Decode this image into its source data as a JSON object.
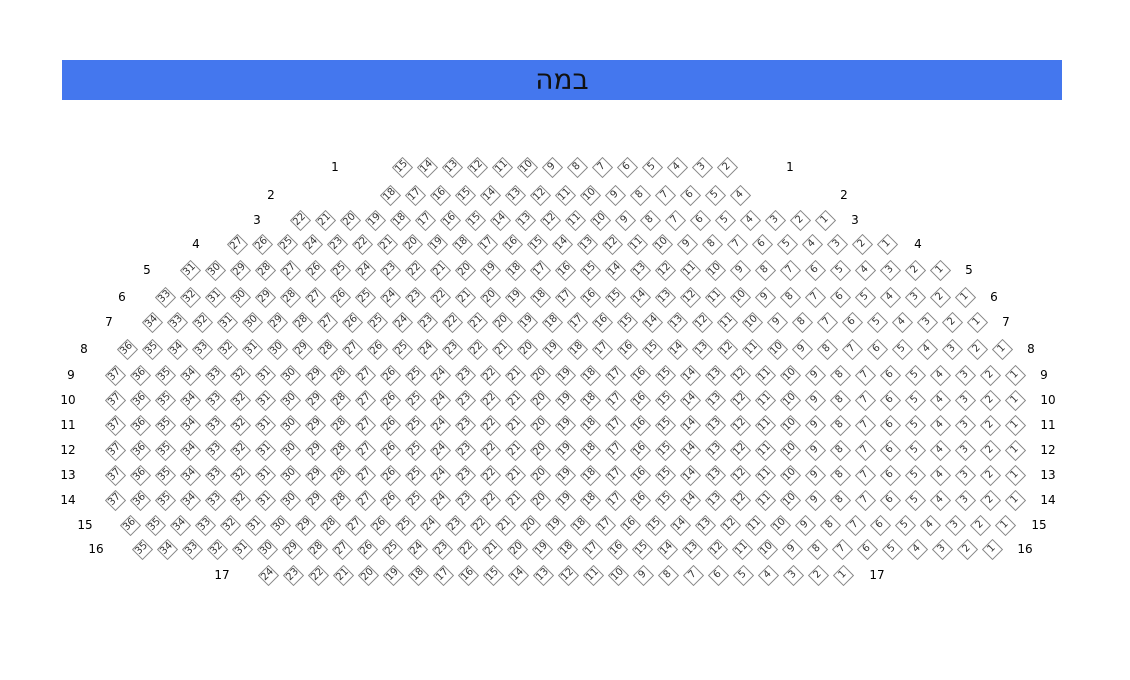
{
  "stage": {
    "label": "במה",
    "color": "#4477ee"
  },
  "rows": [
    {
      "label": "1",
      "seat_from": 15,
      "seat_to": 2
    },
    {
      "label": "2",
      "seat_from": 18,
      "seat_to": 4
    },
    {
      "label": "3",
      "seat_from": 22,
      "seat_to": 1
    },
    {
      "label": "4",
      "seat_from": 27,
      "seat_to": 1
    },
    {
      "label": "5",
      "seat_from": 31,
      "seat_to": 1
    },
    {
      "label": "6",
      "seat_from": 33,
      "seat_to": 1
    },
    {
      "label": "7",
      "seat_from": 34,
      "seat_to": 1
    },
    {
      "label": "8",
      "seat_from": 36,
      "seat_to": 1
    },
    {
      "label": "9",
      "seat_from": 37,
      "seat_to": 1
    },
    {
      "label": "10",
      "seat_from": 37,
      "seat_to": 1
    },
    {
      "label": "11",
      "seat_from": 37,
      "seat_to": 1
    },
    {
      "label": "12",
      "seat_from": 37,
      "seat_to": 1
    },
    {
      "label": "13",
      "seat_from": 37,
      "seat_to": 1
    },
    {
      "label": "14",
      "seat_from": 37,
      "seat_to": 1
    },
    {
      "label": "15",
      "seat_from": 36,
      "seat_to": 1
    },
    {
      "label": "16",
      "seat_from": 35,
      "seat_to": 1
    },
    {
      "label": "17",
      "seat_from": 24,
      "seat_to": 1
    }
  ]
}
